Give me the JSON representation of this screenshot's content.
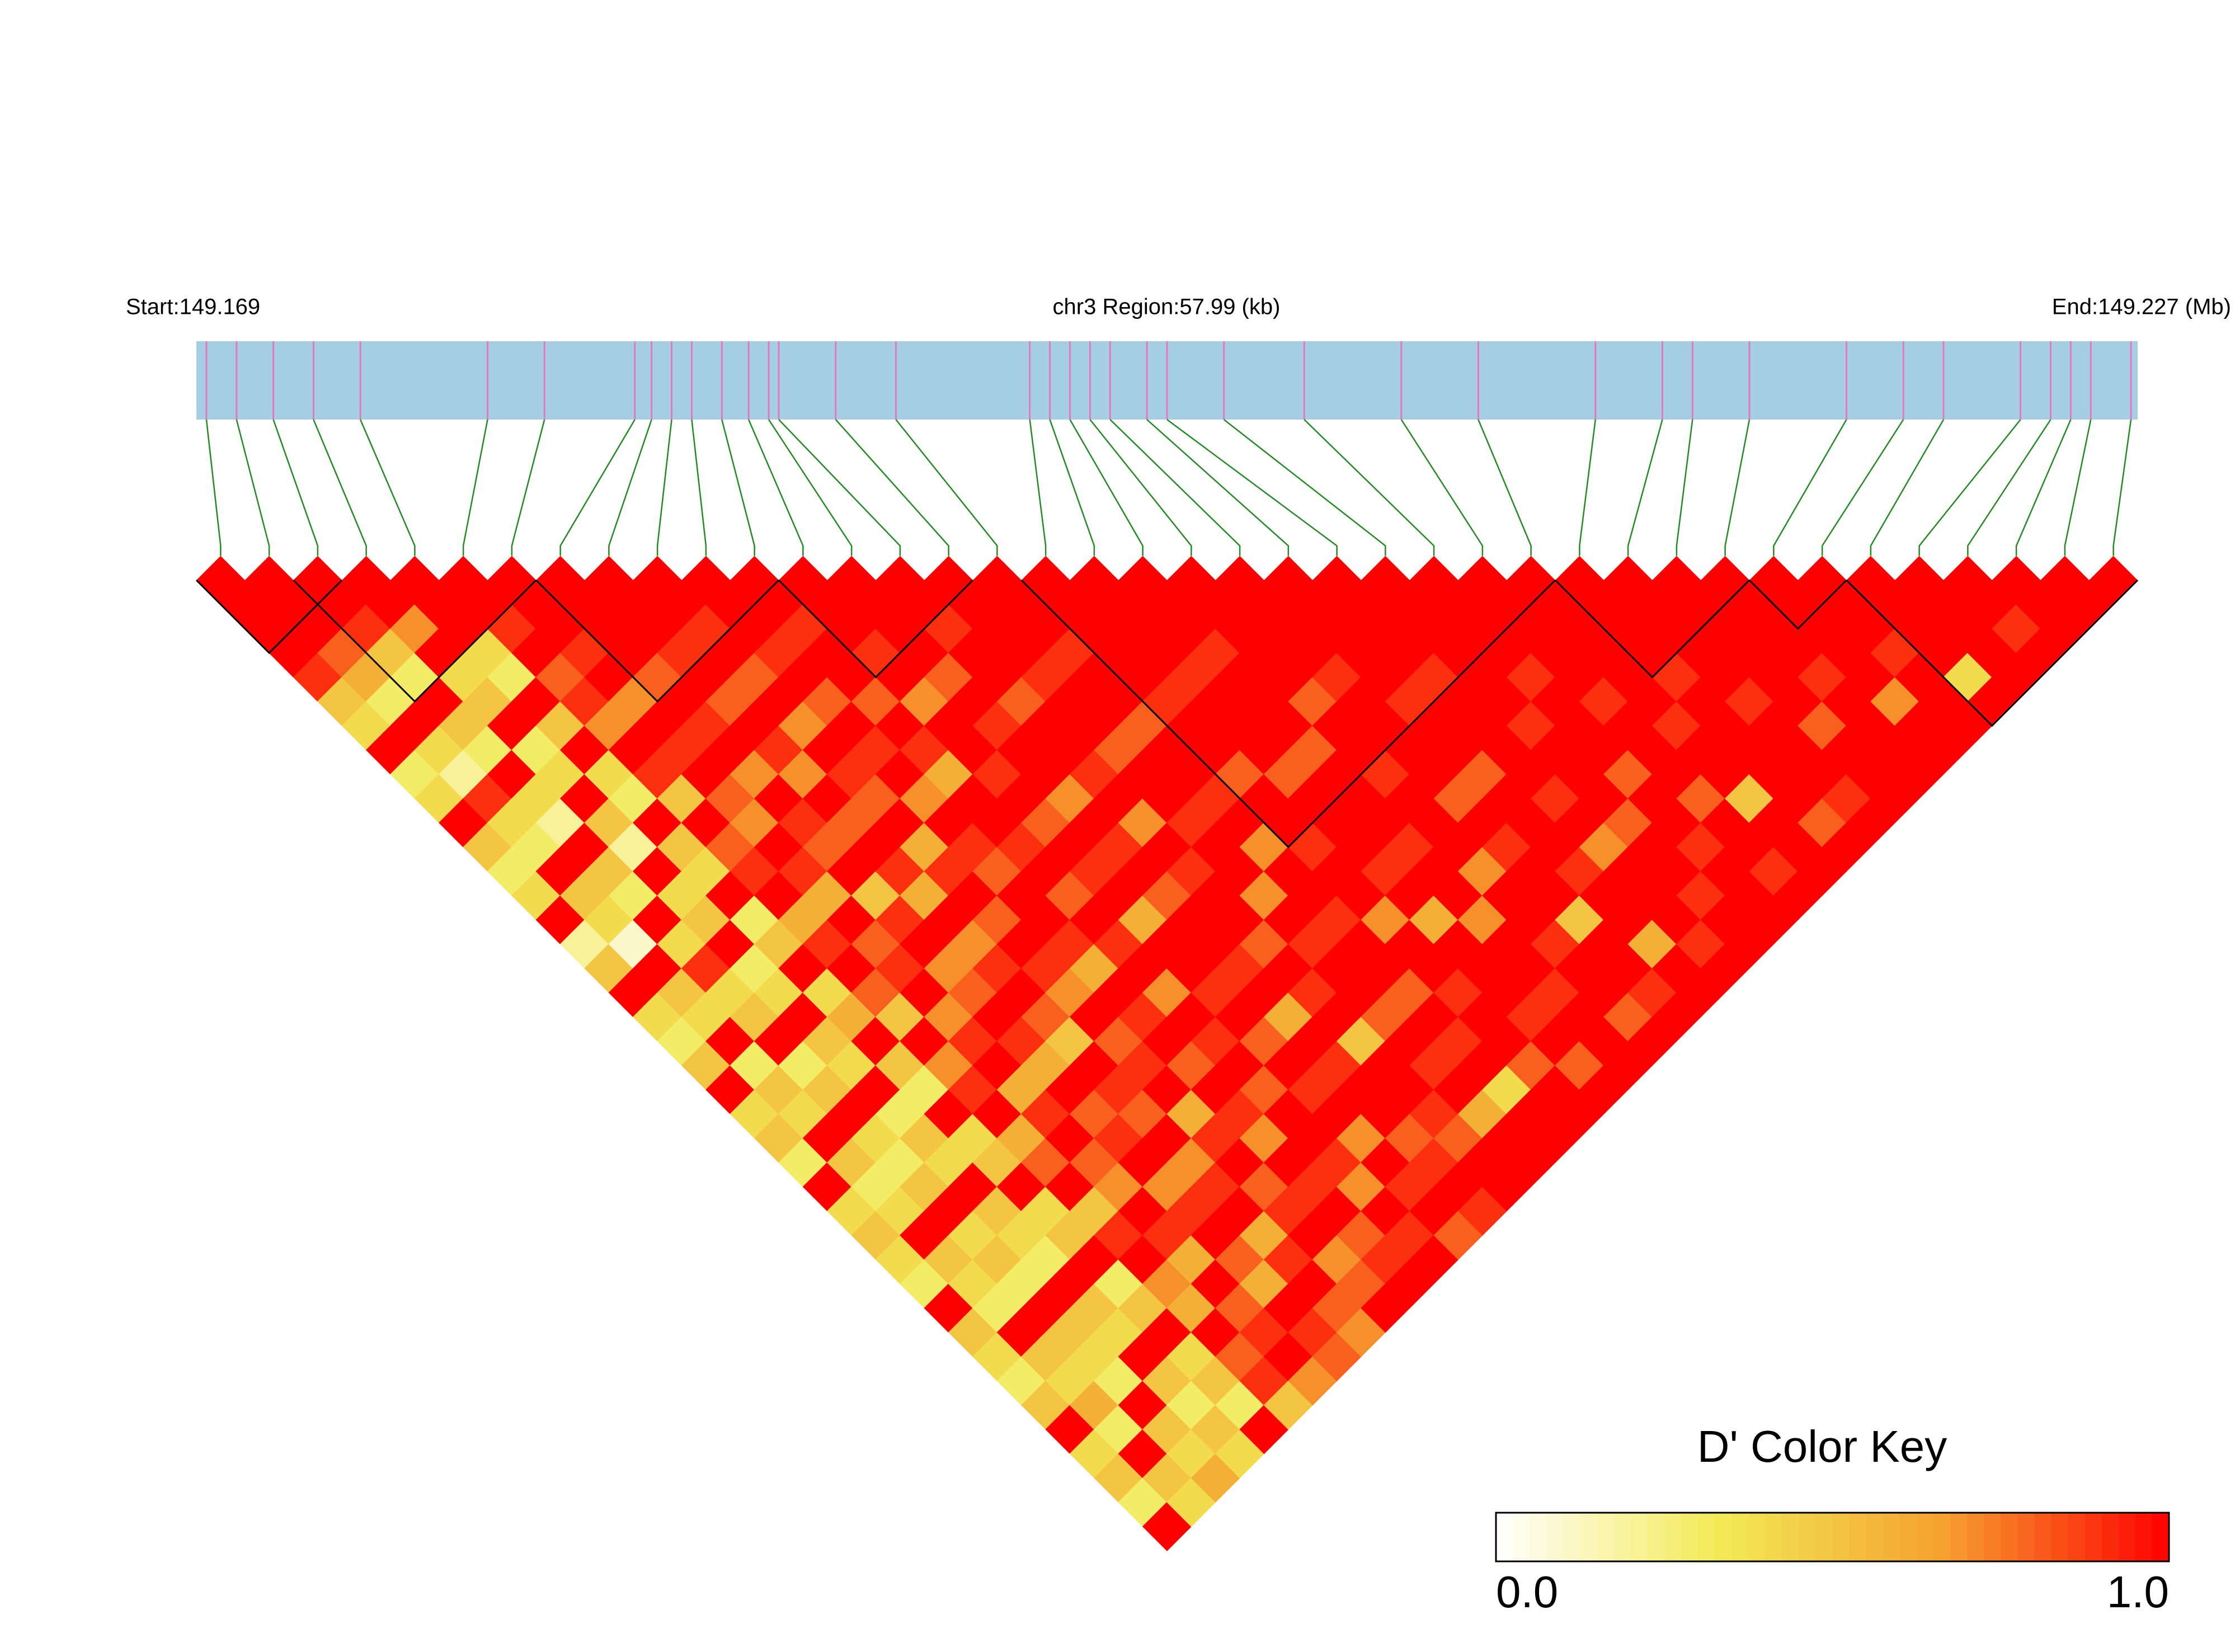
{
  "chart_data": {
    "type": "ld-heatmap",
    "title": "chr3 Region:57.99 (kb)",
    "start_label": "Start:149.169",
    "end_label": "End:149.227 (Mb)",
    "xlim": [
      149.169,
      149.227
    ],
    "positions": [
      149.1693,
      149.1702,
      149.1713,
      149.1725,
      149.1739,
      149.1777,
      149.1794,
      149.1821,
      149.1826,
      149.1832,
      149.1838,
      149.1847,
      149.1855,
      149.1861,
      149.1864,
      149.1881,
      149.1899,
      149.1939,
      149.1945,
      149.1951,
      149.1957,
      149.1963,
      149.1974,
      149.198,
      149.1997,
      149.2021,
      149.205,
      149.2073,
      149.2108,
      149.2128,
      149.2137,
      149.2154,
      149.2183,
      149.22,
      149.2212,
      149.2235,
      149.2244,
      149.225,
      149.2256,
      149.2268
    ],
    "dprime": [
      [
        1,
        1,
        1,
        0.9,
        0.5,
        0.4,
        1,
        0.3,
        0.4,
        1,
        0.5,
        0.3,
        0.4,
        1,
        0.2,
        0.5,
        1,
        0.4,
        0.3,
        0.5,
        1,
        0.4,
        0.5,
        0.3,
        1,
        0.4,
        0.5,
        0.4,
        0.3,
        1,
        0.5,
        0.4,
        0.3,
        0.5,
        1,
        0.4,
        0.5,
        0.3,
        1
      ],
      [
        1,
        1,
        0.8,
        0.6,
        0.3,
        1,
        0.4,
        0.2,
        0.9,
        0.4,
        0.3,
        1,
        0.5,
        0.4,
        0.1,
        1,
        0.5,
        0.4,
        1,
        0.3,
        0.5,
        0.4,
        1,
        0.5,
        0.3,
        0.4,
        1,
        0.5,
        0.4,
        0.3,
        1,
        0.5,
        0.4,
        0.6,
        0.3,
        1,
        0.5,
        0.4
      ],
      [
        1,
        0.9,
        0.5,
        0.3,
        1,
        0.5,
        0.3,
        1,
        0.4,
        0.2,
        1,
        0.5,
        0.3,
        1,
        0.4,
        0.9,
        0.4,
        0.5,
        1,
        0.3,
        0.5,
        1,
        0.4,
        0.3,
        0.5,
        1,
        0.4,
        0.5,
        0.3,
        1,
        0.5,
        0.4,
        0.3,
        1,
        0.5,
        0.4,
        0.6
      ],
      [
        1,
        0.7,
        1,
        0.4,
        0.5,
        1,
        0.3,
        0.4,
        1,
        0.5,
        0.2,
        1,
        0.4,
        0.5,
        1,
        0.3,
        0.4,
        1,
        0.5,
        0.4,
        1,
        0.3,
        0.5,
        0.4,
        1,
        0.5,
        0.4,
        0.3,
        1,
        0.5,
        0.4,
        1,
        0.5,
        0.3,
        0.5,
        0.4
      ],
      [
        1,
        1,
        0.4,
        0.3,
        1,
        0.5,
        1,
        0.4,
        0.3,
        1,
        0.5,
        0.4,
        1,
        0.3,
        0.5,
        1,
        0.4,
        0.6,
        1,
        0.5,
        0.3,
        1,
        0.4,
        0.5,
        1,
        0.4,
        0.5,
        1,
        0.3,
        0.5,
        1,
        0.4,
        0.5,
        0.3,
        1
      ],
      [
        1,
        0.9,
        1,
        0.8,
        0.9,
        0.7,
        1,
        0.9,
        0.5,
        1,
        0.8,
        0.9,
        1,
        0.6,
        0.9,
        1,
        0.8,
        0.5,
        1,
        0.7,
        0.9,
        1,
        0.6,
        0.8,
        1,
        0.5,
        0.9,
        1,
        0.7,
        0.6,
        1,
        0.8,
        0.9,
        0.5
      ],
      [
        1,
        1,
        0.9,
        1,
        0.7,
        1,
        0.9,
        1,
        0.8,
        0.7,
        1,
        0.9,
        0.6,
        1,
        0.8,
        0.9,
        1,
        0.7,
        0.9,
        1,
        0.6,
        0.9,
        1,
        0.8,
        0.7,
        1,
        0.9,
        0.6,
        1,
        0.8,
        0.9,
        1,
        0.7
      ],
      [
        1,
        1,
        1,
        0.8,
        1,
        0.9,
        1,
        0.7,
        1,
        0.9,
        0.8,
        1,
        0.5,
        0.9,
        1,
        0.7,
        0.8,
        1,
        0.9,
        0.6,
        1,
        0.8,
        0.9,
        1,
        0.7,
        0.9,
        1,
        0.8,
        0.6,
        1,
        0.9,
        0.8
      ],
      [
        1,
        1,
        0.9,
        1,
        0.8,
        1,
        0.9,
        0.7,
        1,
        0.8,
        1,
        0.9,
        0.6,
        1,
        0.7,
        0.9,
        1,
        0.8,
        0.5,
        1,
        0.9,
        0.8,
        1,
        0.7,
        0.9,
        1,
        0.6,
        0.9,
        1,
        0.8,
        0.7
      ],
      [
        1,
        0.9,
        1,
        0.8,
        1,
        0.7,
        1,
        0.9,
        0.8,
        1,
        0.6,
        0.9,
        1,
        0.8,
        1,
        0.9,
        0.7,
        1,
        0.8,
        0.9,
        1,
        0.6,
        0.9,
        1,
        0.8,
        0.9,
        1,
        0.7,
        0.8,
        1
      ],
      [
        1,
        1,
        0.9,
        1,
        0.8,
        1,
        0.9,
        1,
        0.7,
        1,
        0.9,
        0.8,
        1,
        1,
        0.9,
        0.6,
        1,
        0.9,
        1,
        0.8,
        1,
        0.9,
        0.7,
        1,
        0.9,
        1,
        0.8,
        0.9,
        1
      ],
      [
        1,
        0.9,
        1,
        1,
        0.8,
        1,
        0.9,
        0.6,
        1,
        1,
        0.9,
        1,
        0.8,
        1,
        0.9,
        1,
        0.7,
        1,
        0.9,
        1,
        0.8,
        1,
        1,
        0.9,
        0.7,
        1,
        0.9,
        1
      ],
      [
        1,
        1,
        0.9,
        1,
        0.7,
        1,
        1,
        0.9,
        1,
        0.8,
        1,
        0.9,
        1,
        0.6,
        1,
        1,
        0.9,
        1,
        0.8,
        1,
        0.9,
        1,
        0.7,
        1,
        0.9,
        1,
        0.8
      ],
      [
        1,
        1,
        1,
        0.8,
        1,
        0.9,
        1,
        1,
        0.7,
        1,
        0.9,
        1,
        0.8,
        1,
        1,
        0.9,
        1,
        0.6,
        1,
        0.9,
        1,
        1,
        0.8,
        0.9,
        1,
        0.9
      ],
      [
        1,
        0.9,
        1,
        1,
        0.8,
        1,
        1,
        0.9,
        1,
        0.7,
        1,
        0.9,
        1,
        1,
        0.8,
        1,
        0.9,
        1,
        0.5,
        1,
        1,
        0.9,
        0.8,
        1,
        1
      ],
      [
        1,
        1,
        1,
        0.9,
        1,
        1,
        0.8,
        1,
        1,
        0.9,
        1,
        1,
        0.7,
        1,
        0.9,
        1,
        1,
        0.8,
        1,
        0.9,
        1,
        0.6,
        1,
        1
      ],
      [
        1,
        1,
        0.9,
        1,
        1,
        0.8,
        1,
        1,
        0.9,
        1,
        0.7,
        1,
        1,
        0.9,
        1,
        1,
        0.8,
        1,
        0.9,
        1,
        0.4,
        1,
        1
      ],
      [
        1,
        1,
        1,
        1,
        0.9,
        1,
        1,
        0.8,
        1,
        1,
        0.9,
        1,
        1,
        0.7,
        1,
        1,
        0.9,
        1,
        1,
        0.8,
        1,
        1
      ],
      [
        1,
        1,
        1,
        0.9,
        1,
        1,
        1,
        0.8,
        1,
        1,
        1,
        0.9,
        1,
        0.6,
        1,
        1,
        1,
        0.9,
        1,
        0.8,
        1
      ],
      [
        1,
        1,
        0.9,
        1,
        1,
        1,
        0.8,
        1,
        1,
        1,
        0.9,
        1,
        1,
        0.7,
        1,
        1,
        0.9,
        1,
        1,
        1
      ],
      [
        1,
        1,
        1,
        1,
        0.8,
        1,
        1,
        0.9,
        1,
        1,
        1,
        0.7,
        1,
        1,
        0.9,
        1,
        1,
        0.8,
        1
      ],
      [
        1,
        1,
        1,
        0.9,
        1,
        1,
        1,
        1,
        0.8,
        1,
        0.9,
        1,
        1,
        0.5,
        1,
        1,
        0.9,
        1
      ],
      [
        1,
        1,
        1,
        1,
        0.9,
        1,
        1,
        0.8,
        1,
        1,
        1,
        0.9,
        1,
        1,
        0.6,
        1,
        1
      ],
      [
        1,
        1,
        1,
        0.9,
        1,
        1,
        1,
        1,
        0.9,
        1,
        0.7,
        1,
        1,
        1,
        0.9,
        1
      ],
      [
        1,
        1,
        1,
        1,
        1,
        0.9,
        1,
        1,
        1,
        0.8,
        1,
        1,
        0.9,
        1,
        1
      ],
      [
        1,
        1,
        1,
        0.9,
        1,
        1,
        1,
        0.8,
        1,
        1,
        0.9,
        1,
        1,
        1
      ],
      [
        1,
        1,
        1,
        1,
        0.9,
        1,
        1,
        1,
        0.8,
        1,
        1,
        0.9,
        1
      ],
      [
        1,
        1,
        1,
        1,
        1,
        0.9,
        1,
        1,
        0.5,
        1,
        1,
        1
      ],
      [
        1,
        1,
        1,
        0.9,
        1,
        1,
        1,
        1,
        1,
        0.8,
        1
      ],
      [
        1,
        1,
        1,
        1,
        0.9,
        1,
        1,
        1,
        0.9,
        1
      ],
      [
        1,
        1,
        1,
        1,
        1,
        0.8,
        1,
        1,
        1
      ],
      [
        1,
        1,
        1,
        0.9,
        1,
        1,
        1,
        1
      ],
      [
        1,
        1,
        1,
        1,
        0.7,
        1,
        1
      ],
      [
        1,
        1,
        0.9,
        1,
        1,
        1
      ],
      [
        1,
        1,
        1,
        0.4,
        1
      ],
      [
        1,
        1,
        1,
        1
      ],
      [
        1,
        0.9,
        1
      ],
      [
        1,
        1
      ],
      [
        1
      ]
    ],
    "blocks": [
      [
        0,
        2
      ],
      [
        2,
        6
      ],
      [
        7,
        11
      ],
      [
        12,
        15
      ],
      [
        17,
        27
      ],
      [
        28,
        31
      ],
      [
        32,
        33
      ],
      [
        34,
        39
      ]
    ],
    "colorbar": {
      "title": "D' Color Key",
      "colors": [
        "#ffffff",
        "#f2ea55",
        "#f5a030",
        "#ff0000"
      ],
      "lim": [
        0,
        1
      ],
      "ticks": [
        {
          "value": 0,
          "label": "0.0"
        },
        {
          "value": 1,
          "label": "1.0"
        }
      ]
    },
    "bar_color": "#a6cee3",
    "marker_color": "#e377c2",
    "link_color": "#228b22"
  }
}
